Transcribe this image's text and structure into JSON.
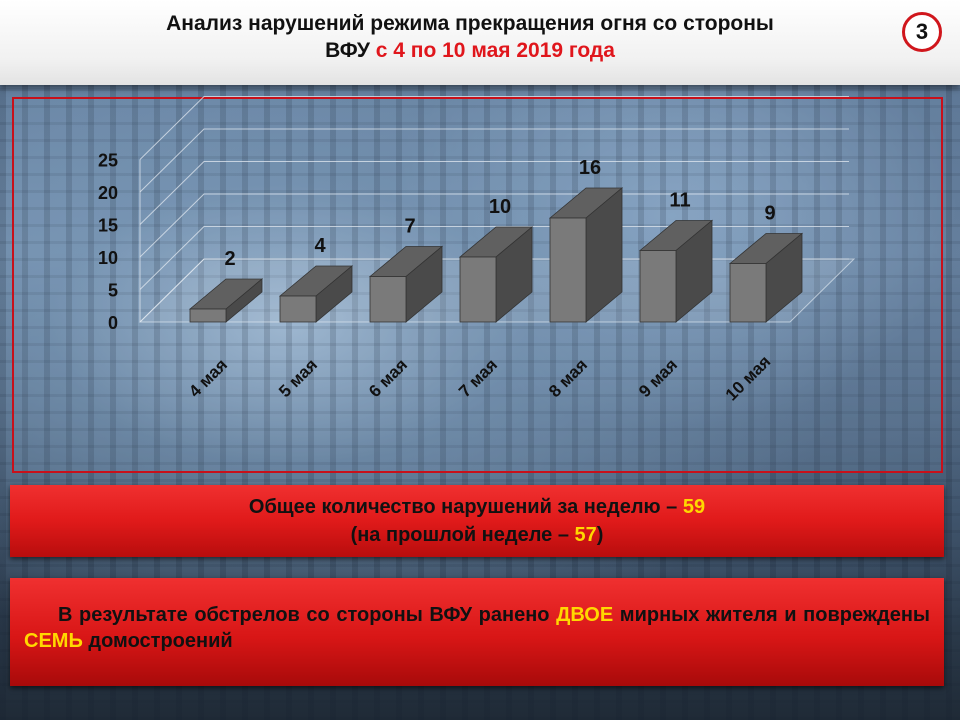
{
  "header": {
    "title_line1": "Анализ нарушений режима прекращения огня со стороны",
    "title_line2_black": "ВФУ",
    "title_line2_red": "с 4 по 10 мая 2019 года",
    "slide_number": "3"
  },
  "chart_data": {
    "type": "bar",
    "categories": [
      "4 мая",
      "5 мая",
      "6 мая",
      "7 мая",
      "8 мая",
      "9 мая",
      "10 мая"
    ],
    "values": [
      2,
      4,
      7,
      10,
      16,
      11,
      9
    ],
    "y_ticks": [
      "0",
      "5",
      "10",
      "15",
      "20",
      "25"
    ],
    "ylim": [
      0,
      25
    ],
    "title": "",
    "xlabel": "",
    "ylabel": "",
    "grid": true,
    "bar_front_color": "#7a7a7a",
    "bar_side_color": "#4a4a4a",
    "bar_top_color": "#606060"
  },
  "summary": {
    "line1_text": "Общее количество нарушений за неделю –",
    "line1_value": "59",
    "line2_prefix": "(на прошлой неделе –",
    "line2_value": "57",
    "line2_suffix": ")"
  },
  "result": {
    "part1": "В результате обстрелов со стороны ВФУ ранено",
    "highlight1": "ДВОЕ",
    "part2": "мирных жителя и повреждены",
    "highlight2": "СЕМЬ",
    "part3": "домостроений"
  },
  "colors": {
    "accent_red": "#e0161c",
    "highlight_yellow": "#ffd800"
  }
}
